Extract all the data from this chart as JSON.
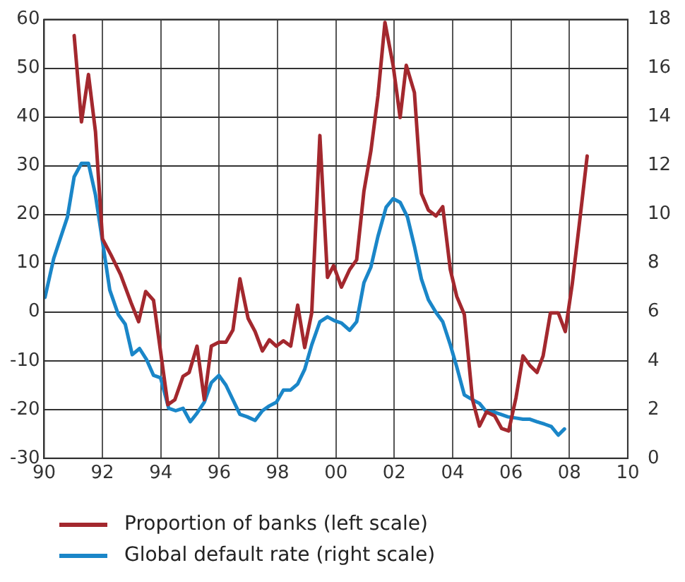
{
  "chart_data": {
    "type": "line",
    "xlim": [
      1990,
      2010
    ],
    "xticks": [
      {
        "value": 1990,
        "label": "90"
      },
      {
        "value": 1992,
        "label": "92"
      },
      {
        "value": 1994,
        "label": "94"
      },
      {
        "value": 1996,
        "label": "96"
      },
      {
        "value": 1998,
        "label": "98"
      },
      {
        "value": 2000,
        "label": "00"
      },
      {
        "value": 2002,
        "label": "02"
      },
      {
        "value": 2004,
        "label": "04"
      },
      {
        "value": 2006,
        "label": "06"
      },
      {
        "value": 2008,
        "label": "08"
      },
      {
        "value": 2010,
        "label": "10"
      }
    ],
    "ylim": [
      -30,
      60
    ],
    "yticks": [
      -30,
      -20,
      -10,
      0,
      10,
      20,
      30,
      40,
      50,
      60
    ],
    "y2lim": [
      0,
      18
    ],
    "y2ticks": [
      0,
      2,
      4,
      6,
      8,
      10,
      12,
      14,
      16,
      18
    ],
    "grid": true,
    "legend": "bottom",
    "marker": "none",
    "line_style": "solid",
    "series": [
      {
        "name": "Proportion of banks (left scale)",
        "color": "#a3282e",
        "x": [
          1991.03,
          1991.28,
          1991.52,
          1991.76,
          1992.0,
          1992.3,
          1992.62,
          1992.98,
          1993.24,
          1993.48,
          1993.75,
          1994.24,
          1994.48,
          1994.76,
          1994.97,
          1995.24,
          1995.49,
          1995.73,
          1995.99,
          1996.23,
          1996.47,
          1996.71,
          1996.99,
          1997.23,
          1997.48,
          1997.72,
          1997.96,
          1998.2,
          1998.45,
          1998.69,
          1998.93,
          1999.17,
          1999.45,
          1999.71,
          1999.92,
          2000.19,
          2000.47,
          2000.71,
          2000.96,
          2001.2,
          2001.44,
          2001.68,
          2001.96,
          2002.2,
          2002.41,
          2002.69,
          2002.93,
          2003.17,
          2003.43,
          2003.66,
          2003.92,
          2004.14,
          2004.4,
          2004.68,
          2004.92,
          2005.16,
          2005.44,
          2005.68,
          2005.92,
          2006.17,
          2006.41,
          2006.65,
          2006.89,
          2007.1,
          2007.35,
          2007.62,
          2007.86,
          2008.1,
          2008.35,
          2008.61
        ],
        "values": [
          56.7,
          39,
          48.7,
          37,
          15,
          11.6,
          7.7,
          1.9,
          -2,
          4.2,
          2.4,
          -19,
          -18,
          -13.2,
          -12.4,
          -7,
          -18,
          -7,
          -6.2,
          -6.2,
          -3.7,
          6.8,
          -1.3,
          -4,
          -8,
          -5.7,
          -7,
          -5.9,
          -7,
          1.4,
          -7.3,
          -0.2,
          36.2,
          7.1,
          9.5,
          5.1,
          8.7,
          10.7,
          24.8,
          33.1,
          44.3,
          59.4,
          50.6,
          39.9,
          50.6,
          45,
          24.3,
          20.9,
          19.7,
          21.6,
          8.7,
          3.2,
          -0.5,
          -18,
          -23.4,
          -20.5,
          -21.3,
          -23.9,
          -24.4,
          -17.6,
          -9,
          -11,
          -12.4,
          -9,
          -0.2,
          -0.2,
          -4,
          5.8,
          18.5,
          32
        ]
      },
      {
        "name": "Global default rate (right scale)",
        "color": "#1a86c8",
        "axis": "y2",
        "x": [
          1990.03,
          1990.33,
          1990.55,
          1990.8,
          1991.03,
          1991.28,
          1991.52,
          1991.76,
          1992.0,
          1992.25,
          1992.54,
          1992.78,
          1993.02,
          1993.27,
          1993.51,
          1993.75,
          1993.99,
          1994.27,
          1994.51,
          1994.76,
          1995.01,
          1995.24,
          1995.49,
          1995.73,
          1995.99,
          1996.23,
          1996.47,
          1996.71,
          1996.96,
          1997.23,
          1997.48,
          1997.72,
          1997.96,
          1998.2,
          1998.45,
          1998.69,
          1998.93,
          1999.17,
          1999.45,
          1999.71,
          1999.94,
          2000.19,
          2000.47,
          2000.71,
          2000.96,
          2001.2,
          2001.44,
          2001.72,
          2001.96,
          2002.2,
          2002.45,
          2002.69,
          2002.93,
          2003.17,
          2003.42,
          2003.66,
          2003.92,
          2004.14,
          2004.4,
          2004.68,
          2004.92,
          2005.16,
          2005.4,
          2005.65,
          2005.89,
          2006.17,
          2006.41,
          2006.65,
          2006.89,
          2007.15,
          2007.38,
          2007.62,
          2007.83
        ],
        "values": [
          6.6,
          8.2,
          9.0,
          9.9,
          11.55,
          12.1,
          12.1,
          10.8,
          8.9,
          6.9,
          5.9,
          5.5,
          4.25,
          4.5,
          4.05,
          3.4,
          3.3,
          2.05,
          1.95,
          2.05,
          1.5,
          1.85,
          2.3,
          3.1,
          3.4,
          3.0,
          2.4,
          1.8,
          1.7,
          1.55,
          1.95,
          2.15,
          2.3,
          2.8,
          2.8,
          3.05,
          3.65,
          4.65,
          5.6,
          5.8,
          5.65,
          5.55,
          5.25,
          5.6,
          7.2,
          7.85,
          9.1,
          10.3,
          10.65,
          10.5,
          9.9,
          8.7,
          7.35,
          6.5,
          6.0,
          5.6,
          4.65,
          3.75,
          2.6,
          2.4,
          2.25,
          1.9,
          1.9,
          1.8,
          1.7,
          1.65,
          1.6,
          1.6,
          1.5,
          1.4,
          1.3,
          0.95,
          1.2
        ]
      }
    ]
  }
}
